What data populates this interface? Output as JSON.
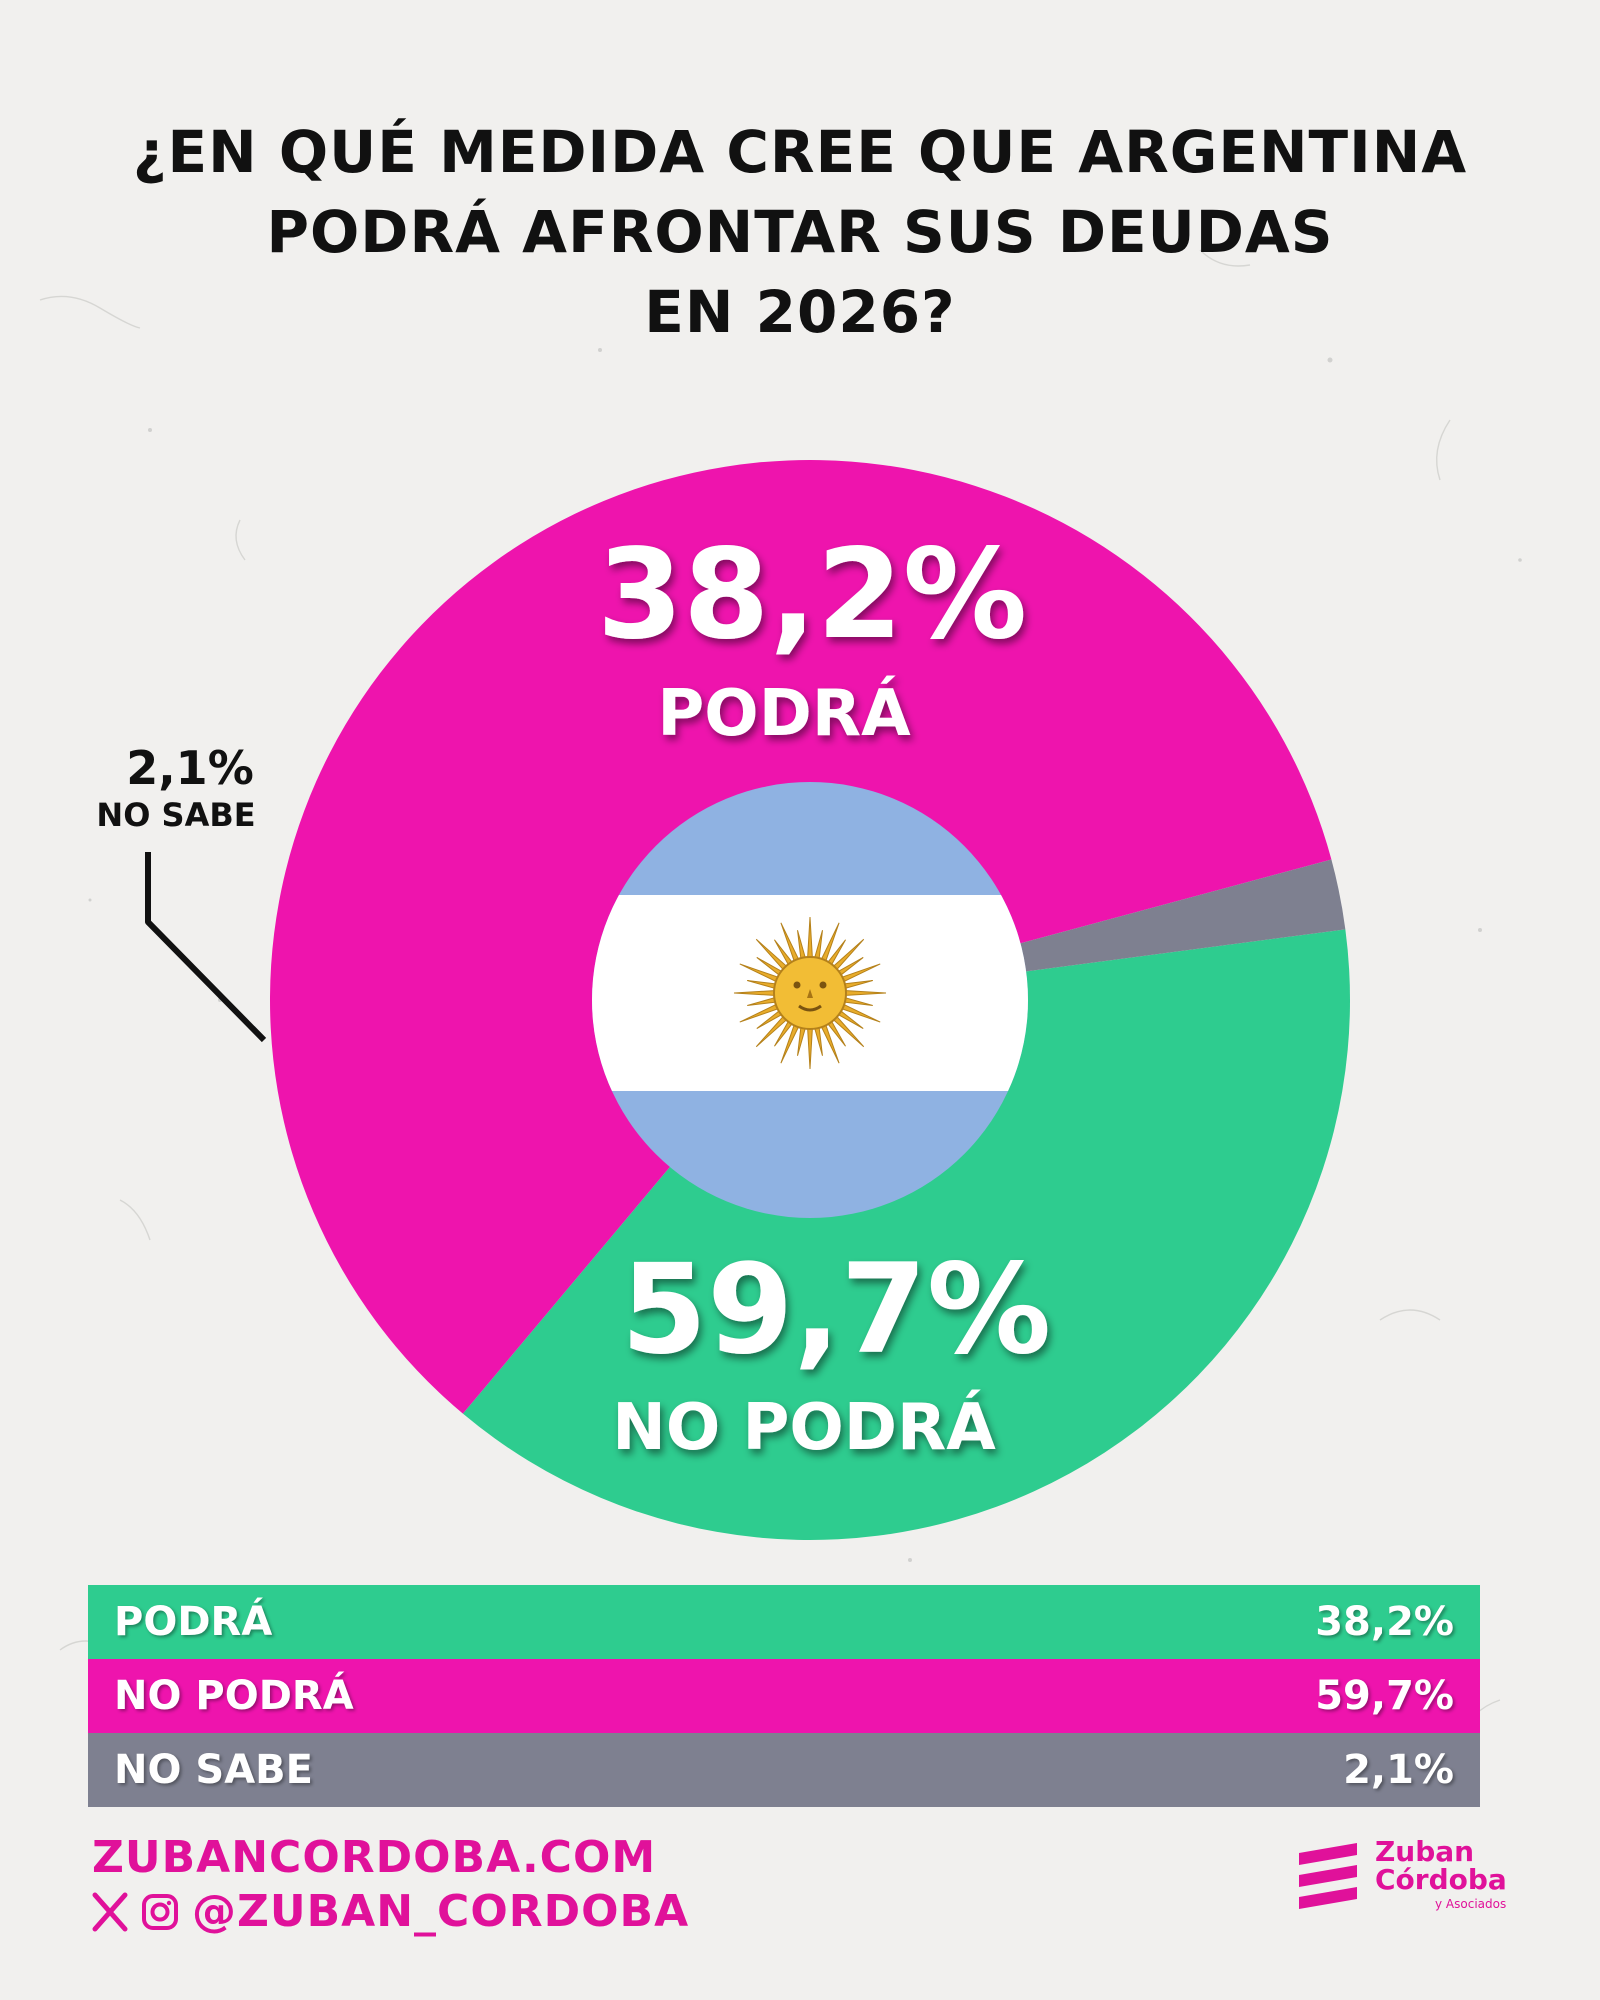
{
  "title": {
    "line1": "¿EN QUÉ MEDIDA CREE QUE ARGENTINA",
    "line2": "PODRÁ AFRONTAR SUS DEUDAS",
    "line3": "EN 2026?"
  },
  "chart_data": {
    "type": "pie",
    "title": "¿EN QUÉ MEDIDA CREE QUE ARGENTINA PODRÁ AFRONTAR SUS DEUDAS EN 2026?",
    "donut": true,
    "slices": [
      {
        "label": "PODRÁ",
        "value": 38.2,
        "display": "38,2%",
        "color": "#2ecc8f"
      },
      {
        "label": "NO PODRÁ",
        "value": 59.7,
        "display": "59,7%",
        "color": "#ee14ad"
      },
      {
        "label": "NO SABE",
        "value": 2.1,
        "display": "2,1%",
        "color": "#7e8090"
      }
    ]
  },
  "table": {
    "rows": [
      {
        "label": "PODRÁ",
        "value": "38,2%",
        "color": "#2ecc8f"
      },
      {
        "label": "NO PODRÁ",
        "value": "59,7%",
        "color": "#ee14ad"
      },
      {
        "label": "NO SABE",
        "value": "2,1%",
        "color": "#7e8090"
      }
    ]
  },
  "center_icon": "argentina-flag-icon",
  "footer": {
    "website": "ZUBANCORDOBA.COM",
    "handle": "@ZUBAN_CORDOBA",
    "social_icons": [
      "x-icon",
      "instagram-icon"
    ]
  },
  "logo": {
    "name_line1": "Zuban",
    "name_line2": "Córdoba",
    "sub": "y Asociados"
  },
  "colors": {
    "accent": "#e0119a",
    "green": "#2ecc8f",
    "magenta": "#ee14ad",
    "gray": "#7e8090",
    "flag_blue": "#8fb2e2",
    "sun": "#e8ac2a"
  }
}
